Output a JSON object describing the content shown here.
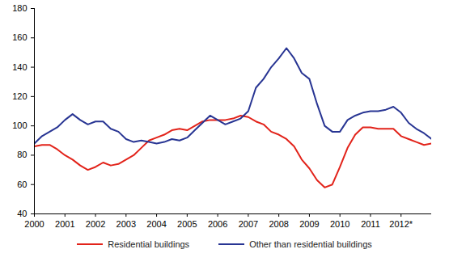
{
  "chart_data": {
    "type": "line",
    "x": [
      2000,
      2000.25,
      2000.5,
      2000.75,
      2001,
      2001.25,
      2001.5,
      2001.75,
      2002,
      2002.25,
      2002.5,
      2002.75,
      2003,
      2003.25,
      2003.5,
      2003.75,
      2004,
      2004.25,
      2004.5,
      2004.75,
      2005,
      2005.25,
      2005.5,
      2005.75,
      2006,
      2006.25,
      2006.5,
      2006.75,
      2007,
      2007.25,
      2007.5,
      2007.75,
      2008,
      2008.25,
      2008.5,
      2008.75,
      2009,
      2009.25,
      2009.5,
      2009.75,
      2010,
      2010.25,
      2010.5,
      2010.75,
      2011,
      2011.25,
      2011.5,
      2011.75,
      2012,
      2012.25,
      2012.5,
      2012.75,
      2013
    ],
    "series": [
      {
        "name": "Residential buildings",
        "color": "#e2231a",
        "values": [
          86,
          87,
          87,
          84,
          80,
          77,
          73,
          70,
          72,
          75,
          73,
          74,
          77,
          80,
          85,
          90,
          92,
          94,
          97,
          98,
          97,
          100,
          103,
          104,
          104,
          104,
          105,
          107,
          106,
          103,
          101,
          96,
          94,
          91,
          86,
          77,
          71,
          63,
          58,
          60,
          72,
          85,
          94,
          99,
          99,
          98,
          98,
          98,
          93,
          91,
          89,
          87,
          88
        ]
      },
      {
        "name": "Other than residential buildings",
        "color": "#283593",
        "values": [
          88,
          93,
          96,
          99,
          104,
          108,
          104,
          101,
          103,
          103,
          98,
          96,
          91,
          89,
          90,
          89,
          88,
          89,
          91,
          90,
          92,
          97,
          102,
          107,
          104,
          101,
          103,
          105,
          110,
          126,
          132,
          140,
          146,
          153,
          146,
          136,
          132,
          115,
          100,
          96,
          96,
          104,
          107,
          109,
          110,
          110,
          111,
          113,
          109,
          102,
          98,
          95,
          91
        ]
      }
    ],
    "xlim": [
      2000,
      2013
    ],
    "xticks": [
      2000,
      2001,
      2002,
      2003,
      2004,
      2005,
      2006,
      2007,
      2008,
      2009,
      2010,
      2011,
      {
        "value": 2012,
        "label": "2012*"
      }
    ],
    "ylim": [
      40,
      180
    ],
    "yticks": [
      40,
      60,
      80,
      100,
      120,
      140,
      160,
      180
    ],
    "grid": false,
    "legend": "bottom"
  }
}
